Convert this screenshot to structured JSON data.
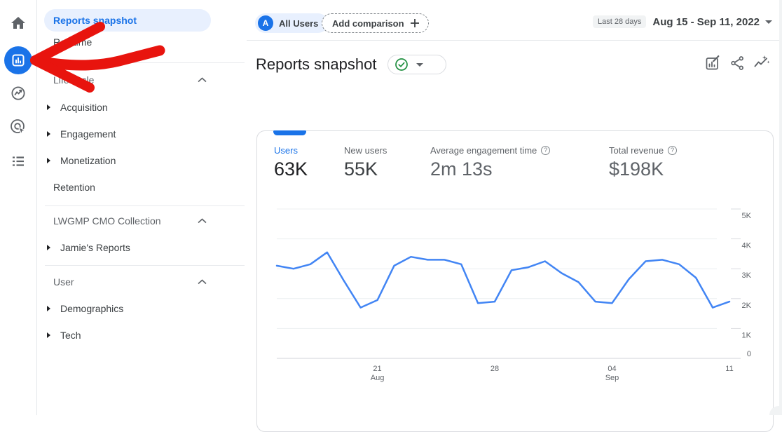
{
  "left_rail": {
    "items": [
      {
        "name": "Home"
      },
      {
        "name": "Reports",
        "selected": true
      },
      {
        "name": "Explore"
      },
      {
        "name": "Advertising"
      },
      {
        "name": "Library"
      }
    ]
  },
  "sidebar": {
    "sections": [
      {
        "items": [
          {
            "label": "Reports snapshot",
            "selected": true
          },
          {
            "label": "Realtime"
          }
        ]
      },
      {
        "header": "Life cycle",
        "items": [
          {
            "label": "Acquisition",
            "expandable": true
          },
          {
            "label": "Engagement",
            "expandable": true
          },
          {
            "label": "Monetization",
            "expandable": true
          },
          {
            "label": "Retention",
            "expandable": false
          }
        ]
      },
      {
        "header": "LWGMP CMO Collection",
        "items": [
          {
            "label": "Jamie's Reports",
            "expandable": true
          }
        ]
      },
      {
        "header": "User",
        "items": [
          {
            "label": "Demographics",
            "expandable": true
          },
          {
            "label": "Tech",
            "expandable": true
          }
        ]
      }
    ]
  },
  "topbar": {
    "all_users": {
      "avatar_letter": "A",
      "label": "All Users"
    },
    "add_comparison_label": "Add comparison",
    "date_range_badge": "Last 28 days",
    "date_range": "Aug 15 - Sep 11, 2022"
  },
  "header": {
    "title": "Reports snapshot",
    "icons": [
      "customize-report",
      "share",
      "insights"
    ]
  },
  "metrics": {
    "items": [
      {
        "label": "Users",
        "value": "63K",
        "selected": true,
        "help": false
      },
      {
        "label": "New users",
        "value": "55K",
        "help": false
      },
      {
        "label": "Average engagement time",
        "value": "2m 13s",
        "help": true
      },
      {
        "label": "Total revenue",
        "value": "$198K",
        "help": true
      }
    ]
  },
  "chart_data": {
    "type": "line",
    "title": "",
    "x": [
      "Aug 15",
      "Aug 16",
      "Aug 17",
      "Aug 18",
      "Aug 19",
      "Aug 20",
      "Aug 21",
      "Aug 22",
      "Aug 23",
      "Aug 24",
      "Aug 25",
      "Aug 26",
      "Aug 27",
      "Aug 28",
      "Aug 29",
      "Aug 30",
      "Aug 31",
      "Sep 1",
      "Sep 2",
      "Sep 3",
      "Sep 4",
      "Sep 5",
      "Sep 6",
      "Sep 7",
      "Sep 8",
      "Sep 9",
      "Sep 10",
      "Sep 11"
    ],
    "series": [
      {
        "name": "Users",
        "color": "#4285f4",
        "values": [
          3100,
          3000,
          3150,
          3550,
          2600,
          1700,
          1950,
          3100,
          3400,
          3300,
          3300,
          3150,
          1850,
          1900,
          2950,
          3050,
          3250,
          2850,
          2550,
          1900,
          1850,
          2650,
          3250,
          3300,
          3150,
          2700,
          1700,
          1900
        ]
      }
    ],
    "xlabel": "",
    "ylabel": "",
    "ylim": [
      0,
      5000
    ],
    "yticks": [
      "0",
      "1K",
      "2K",
      "3K",
      "4K",
      "5K"
    ],
    "xticks": [
      {
        "index": 6,
        "label": "21",
        "sub": "Aug"
      },
      {
        "index": 13,
        "label": "28",
        "sub": ""
      },
      {
        "index": 20,
        "label": "04",
        "sub": "Sep"
      },
      {
        "index": 27,
        "label": "11",
        "sub": ""
      }
    ],
    "grid": "horizontal",
    "legend": "none"
  },
  "colors": {
    "accent_blue": "#1a73e8",
    "chart_line": "#4285f4",
    "selected_pill_bg": "#e8f0fe",
    "verified_green": "#1e8e3e",
    "annotation_arrow_red": "#e8140e"
  }
}
